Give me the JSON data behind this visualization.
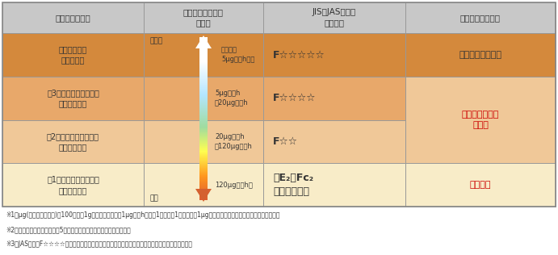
{
  "header_bg": "#c8c8c8",
  "row0_bg": "#d4893c",
  "row1_bg": "#e8a86a",
  "row2_bg": "#f0c898",
  "row3_bg": "#f8ecc8",
  "merged_col3_bg": "#f0c898",
  "border_color": "#999999",
  "headers": [
    "建築材料の区分",
    "ホルムアルデヒド\nの発散",
    "JIS、JASなどの\n表示記号",
    "内装仕上げの制限"
  ],
  "row0_col0": "建築基準法の\n規制対象外",
  "row0_col2": "F☆☆☆☆☆",
  "row0_col3": "制限なしに使える",
  "row0_col3_color": "#333333",
  "row1_col0": "第3種ホルムアルデヒド\n発散建築材料",
  "row1_col2": "F☆☆☆☆",
  "row2_col0": "第2種ホルムアルデヒド\n発散建築材料",
  "row2_col2": "F☆☆",
  "merged_col3_text": "使用面積が制限\nされる",
  "merged_col3_color": "#cc0000",
  "row3_col0": "第1種ホルムアルデヒド\n発散建築材料",
  "row3_col2": "旧E₂、Fc₂\n又は表示なし",
  "row3_col3": "使用禁止",
  "row3_col3_color": "#cc0000",
  "col1_row0_text1": "少ない",
  "col1_row0_text2": "放散速度\n5μg／㎡h以下",
  "col1_row1_text": "5μg／㎡h\n～20μg／㎡h",
  "col1_row2_text": "20μg／㎡h\n～120μg／㎡h",
  "col1_row3_text1": "多い",
  "col1_row3_text2": "120μg／㎡h超",
  "footnote1": "※1　μg(マイクログラム)：100万分の1gの重さ。放散速度1μg／㎡hは建材1㎡につき1時間当たり1μgの化学物質が発散されることをいいます。",
  "footnote2": "※2　建築物の部分に使用して5年経過したものについては、制限なし。",
  "footnote3": "※3　JASでは、F☆☆☆☆のほかに「非ホルムアルデヒド系接着剤使用」などの表示記号もあります。"
}
